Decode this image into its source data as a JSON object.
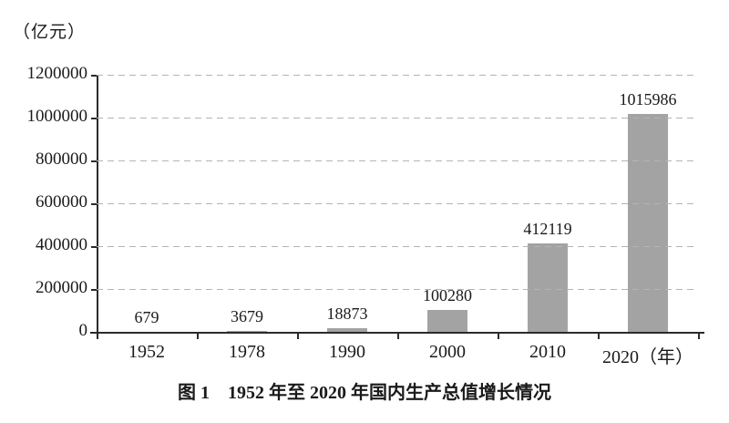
{
  "figure": {
    "unit_label": "（亿元）",
    "caption": "图 1　1952 年至 2020 年国内生产总值增长情况"
  },
  "chart_data": {
    "type": "bar",
    "title": "图 1 1952 年至 2020 年国内生产总值增长情况",
    "unit_label": "（亿元）",
    "categories": [
      "1952",
      "1978",
      "1990",
      "2000",
      "2010",
      "2020"
    ],
    "values": [
      679,
      3679,
      18873,
      100280,
      412119,
      1015986
    ],
    "value_labels": [
      "679",
      "3679",
      "18873",
      "100280",
      "412119",
      "1015986"
    ],
    "xtick_labels": [
      "1952",
      "1978",
      "1990",
      "2000",
      "2010",
      "2020（年）"
    ],
    "xlabel": "年",
    "ylabel": "亿元",
    "ylim": [
      0,
      1200000
    ],
    "yticks": [
      0,
      200000,
      400000,
      600000,
      800000,
      1000000,
      1200000
    ],
    "ytick_labels": [
      "0",
      "200000",
      "400000",
      "600000",
      "800000",
      "1000000",
      "1200000"
    ],
    "grid": "horizontal-dashed",
    "legend": "none",
    "colors": {
      "bar": "#a3a3a3",
      "axis": "#2b2b2b",
      "gridline": "#b4b4b4",
      "text": "#1a1a1a",
      "background": "#ffffff"
    }
  }
}
